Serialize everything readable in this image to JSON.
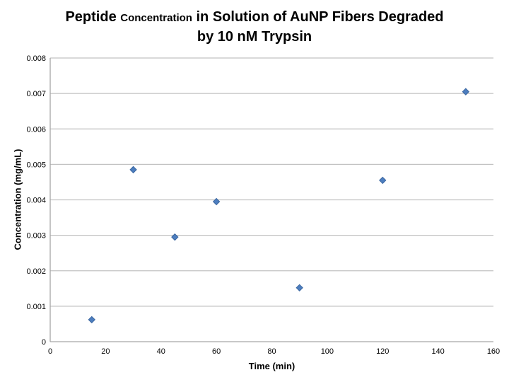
{
  "chart_data": {
    "type": "scatter",
    "title": "Peptide Concentration in Solution of AuNP Fibers Degraded by 10 nM Trypsin",
    "title_parts": [
      {
        "text": "Peptide "
      },
      {
        "text": "Concentration"
      },
      {
        "text": " in Solution of AuNP Fibers Degraded"
      }
    ],
    "title_line2": "by 10 nM Trypsin",
    "xlabel": "Time (min)",
    "ylabel": "Concentration (mg/mL)",
    "x": [
      15,
      30,
      45,
      60,
      90,
      120,
      150
    ],
    "y": [
      0.00062,
      0.00485,
      0.00295,
      0.00395,
      0.00152,
      0.00455,
      0.00705
    ],
    "xlim": [
      0,
      160
    ],
    "ylim": [
      0,
      0.008
    ],
    "x_ticks": [
      0,
      20,
      40,
      60,
      80,
      100,
      120,
      140,
      160
    ],
    "x_tick_labels": [
      "0",
      "20",
      "40",
      "60",
      "80",
      "100",
      "120",
      "140",
      "160"
    ],
    "y_ticks": [
      0,
      0.001,
      0.002,
      0.003,
      0.004,
      0.005,
      0.006,
      0.007,
      0.008
    ],
    "y_tick_labels": [
      "0",
      "0.001",
      "0.002",
      "0.003",
      "0.004",
      "0.005",
      "0.006",
      "0.007",
      "0.008"
    ],
    "grid": "horizontal-only",
    "legend": "none",
    "colors": {
      "marker_fill": "#4d7ebf",
      "marker_stroke": "#3a66a0",
      "gridline": "#c2c2c2",
      "axis_line": "#a6a6a6",
      "text": "#000000"
    },
    "marker": {
      "shape": "diamond",
      "size": 9
    }
  }
}
